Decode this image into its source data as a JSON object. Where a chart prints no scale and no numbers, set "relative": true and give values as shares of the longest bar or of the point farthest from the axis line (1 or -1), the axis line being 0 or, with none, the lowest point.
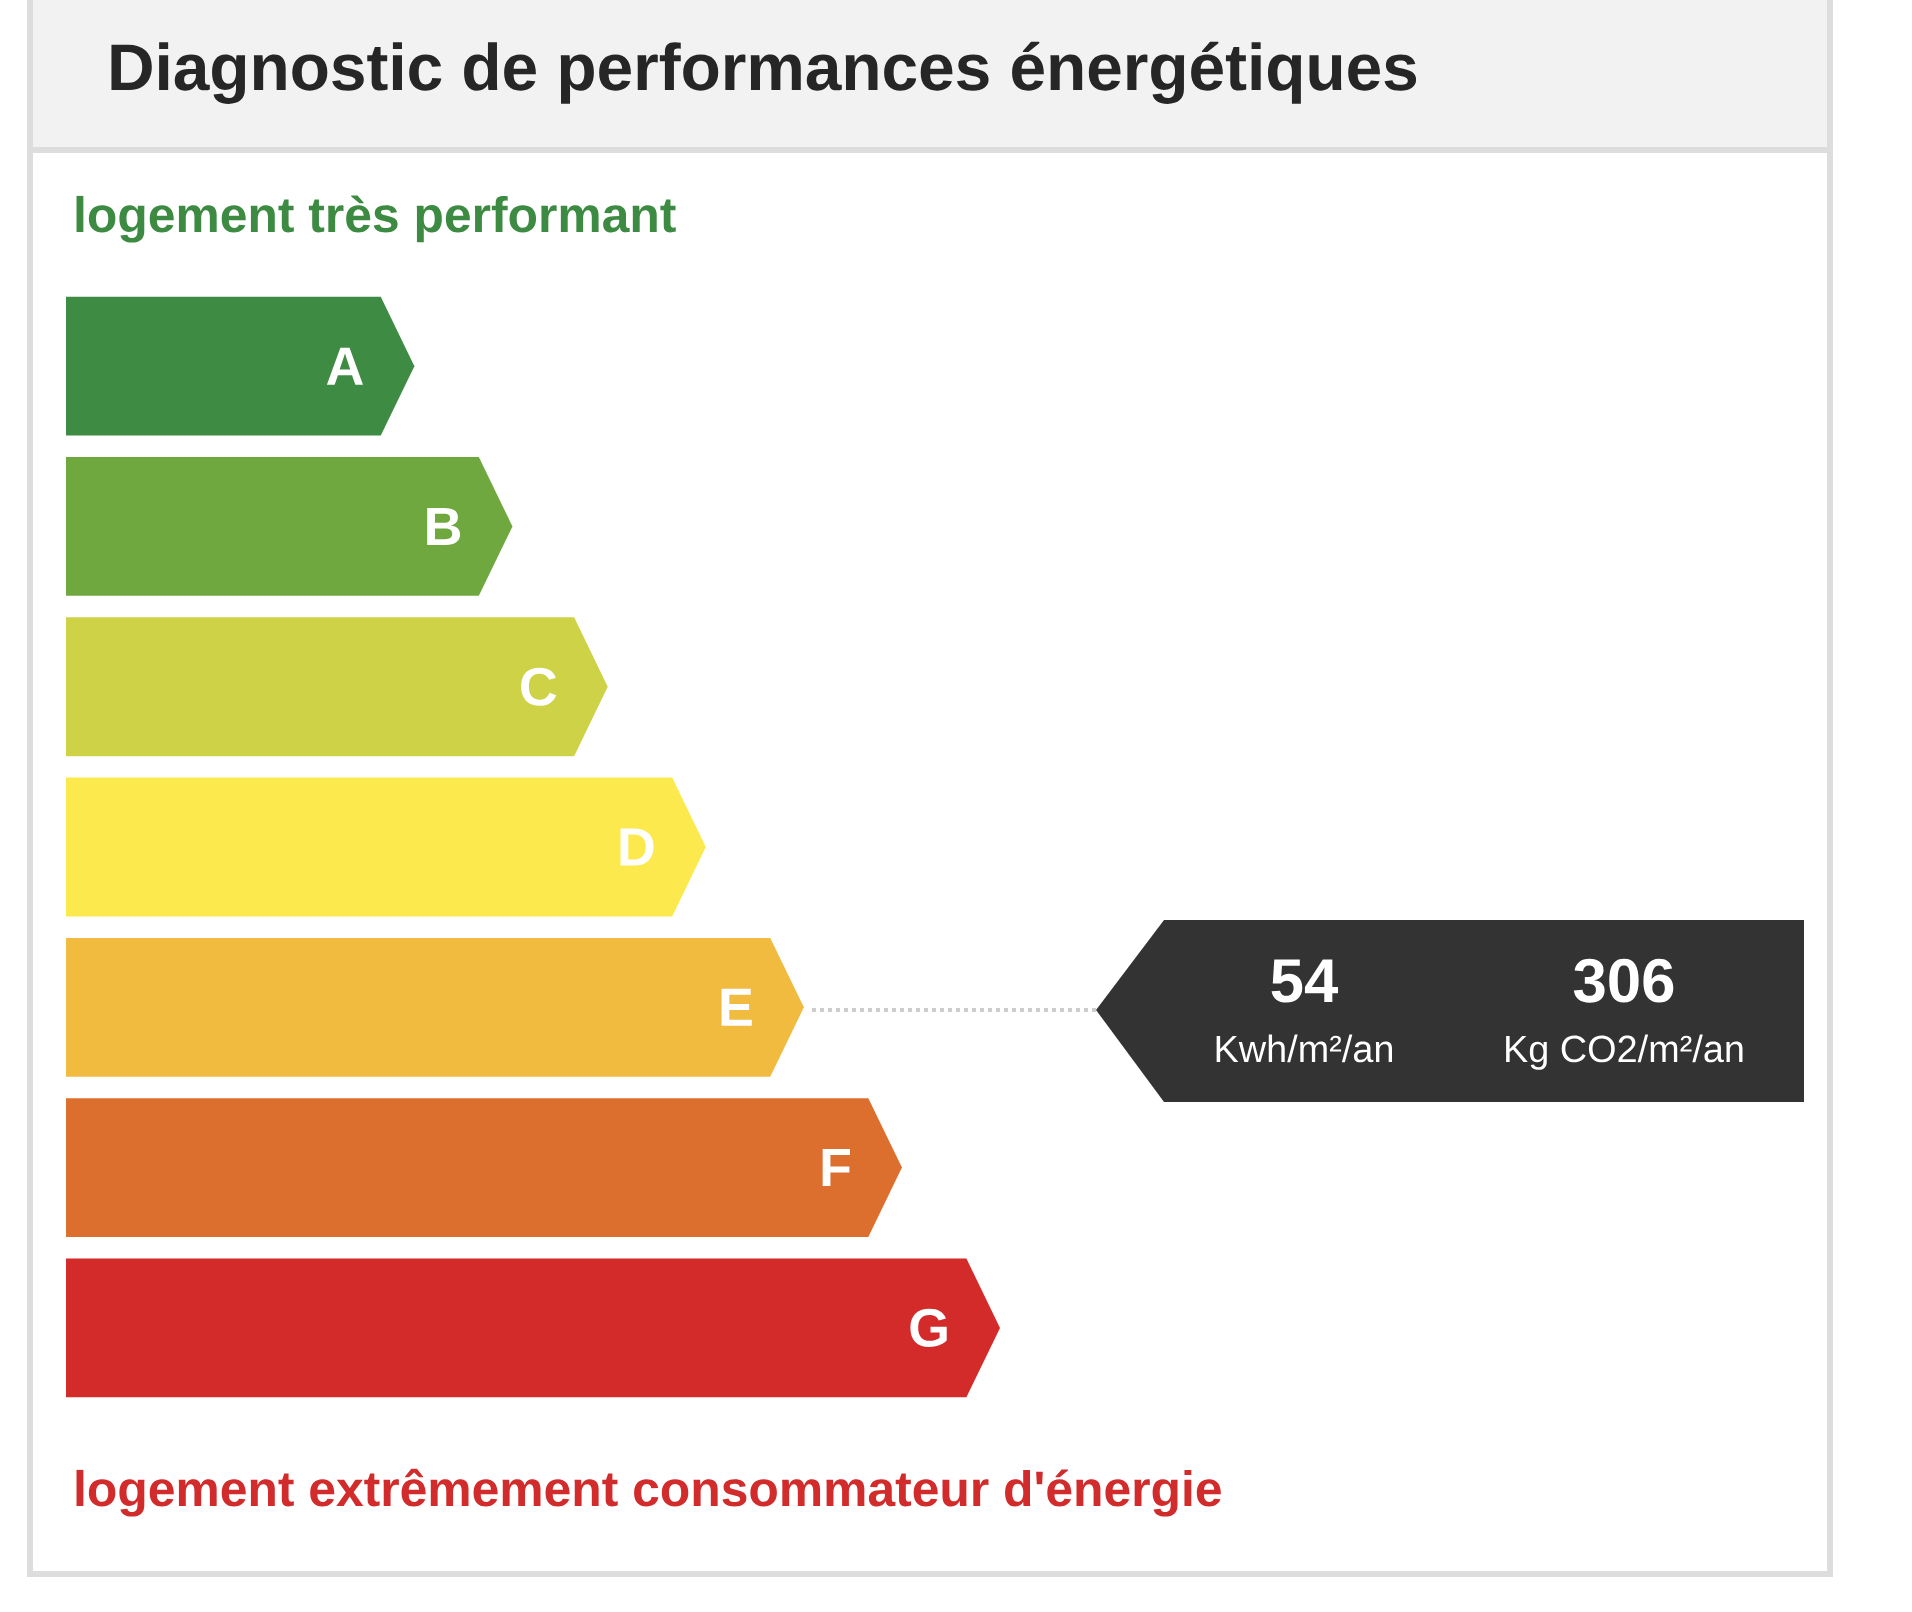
{
  "chart_data": {
    "type": "bar",
    "orientation": "horizontal",
    "relative": true,
    "tick_labels": false,
    "title": "Diagnostic de performances énergétiques",
    "subtitle": "logement très performant",
    "categories": [
      "A",
      "B",
      "C",
      "D",
      "E",
      "F",
      "G"
    ],
    "values": [
      0.373,
      0.478,
      0.58,
      0.685,
      0.79,
      0.895,
      1
    ],
    "colors": [
      "#3e8b43",
      "#6fa83f",
      "#cdd246",
      "#fbe94e",
      "#f1bb40",
      "#dc6f2e",
      "#d22b2a"
    ],
    "annotations": [
      "54",
      "Kwh/m²/an",
      "306",
      "Kg CO2/m²/an",
      "logement extrêmement consommateur d'énergie"
    ]
  }
}
